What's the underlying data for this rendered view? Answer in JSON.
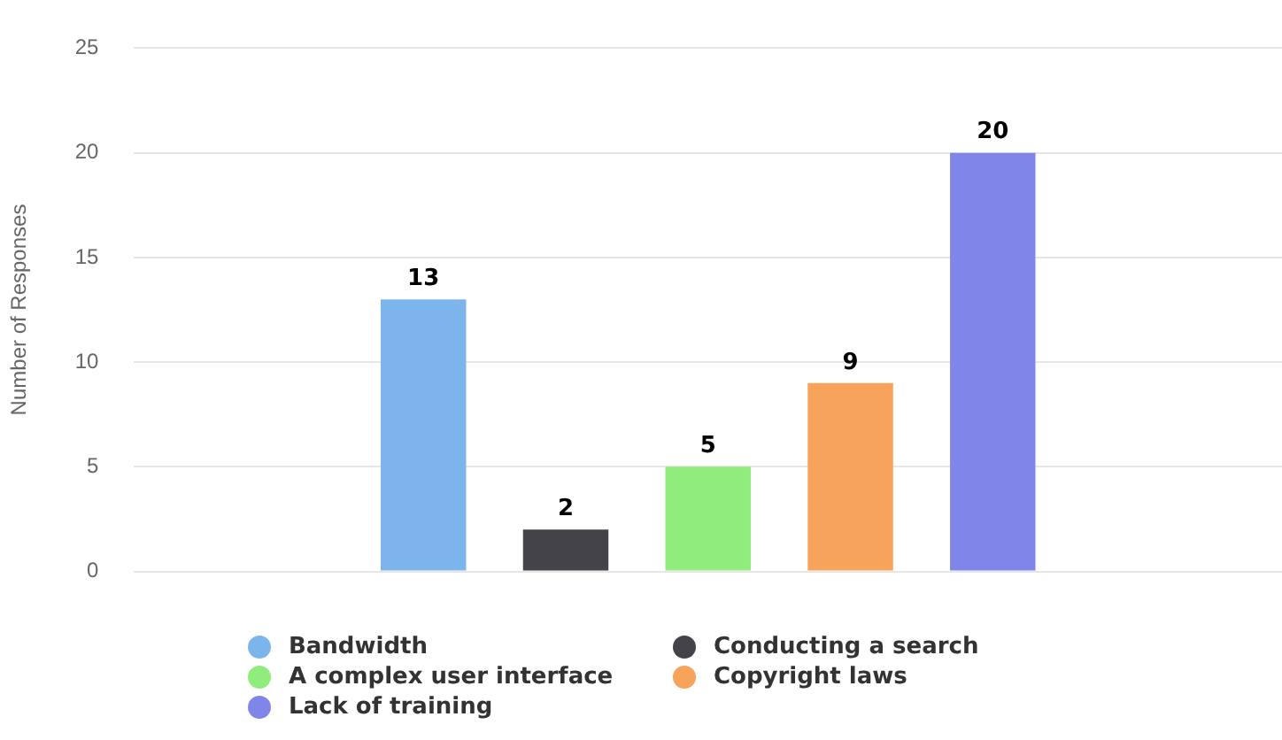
{
  "chart_data": {
    "type": "bar",
    "ylabel": "Number of Responses",
    "categories": [
      null
    ],
    "series": [
      {
        "name": "Bandwidth",
        "color": "#7cb5ec",
        "values": [
          13
        ]
      },
      {
        "name": "Conducting a search",
        "color": "#434348",
        "values": [
          2
        ]
      },
      {
        "name": "A complex user interface",
        "color": "#90ed7d",
        "values": [
          5
        ]
      },
      {
        "name": "Copyright laws",
        "color": "#f7a35c",
        "values": [
          9
        ]
      },
      {
        "name": "Lack of training",
        "color": "#8085e9",
        "values": [
          20
        ]
      }
    ],
    "ylim": [
      0,
      25
    ],
    "yticks": [
      0,
      5,
      10,
      15,
      20,
      25
    ],
    "grid": "y",
    "legend": "bottom",
    "data_labels": true
  }
}
